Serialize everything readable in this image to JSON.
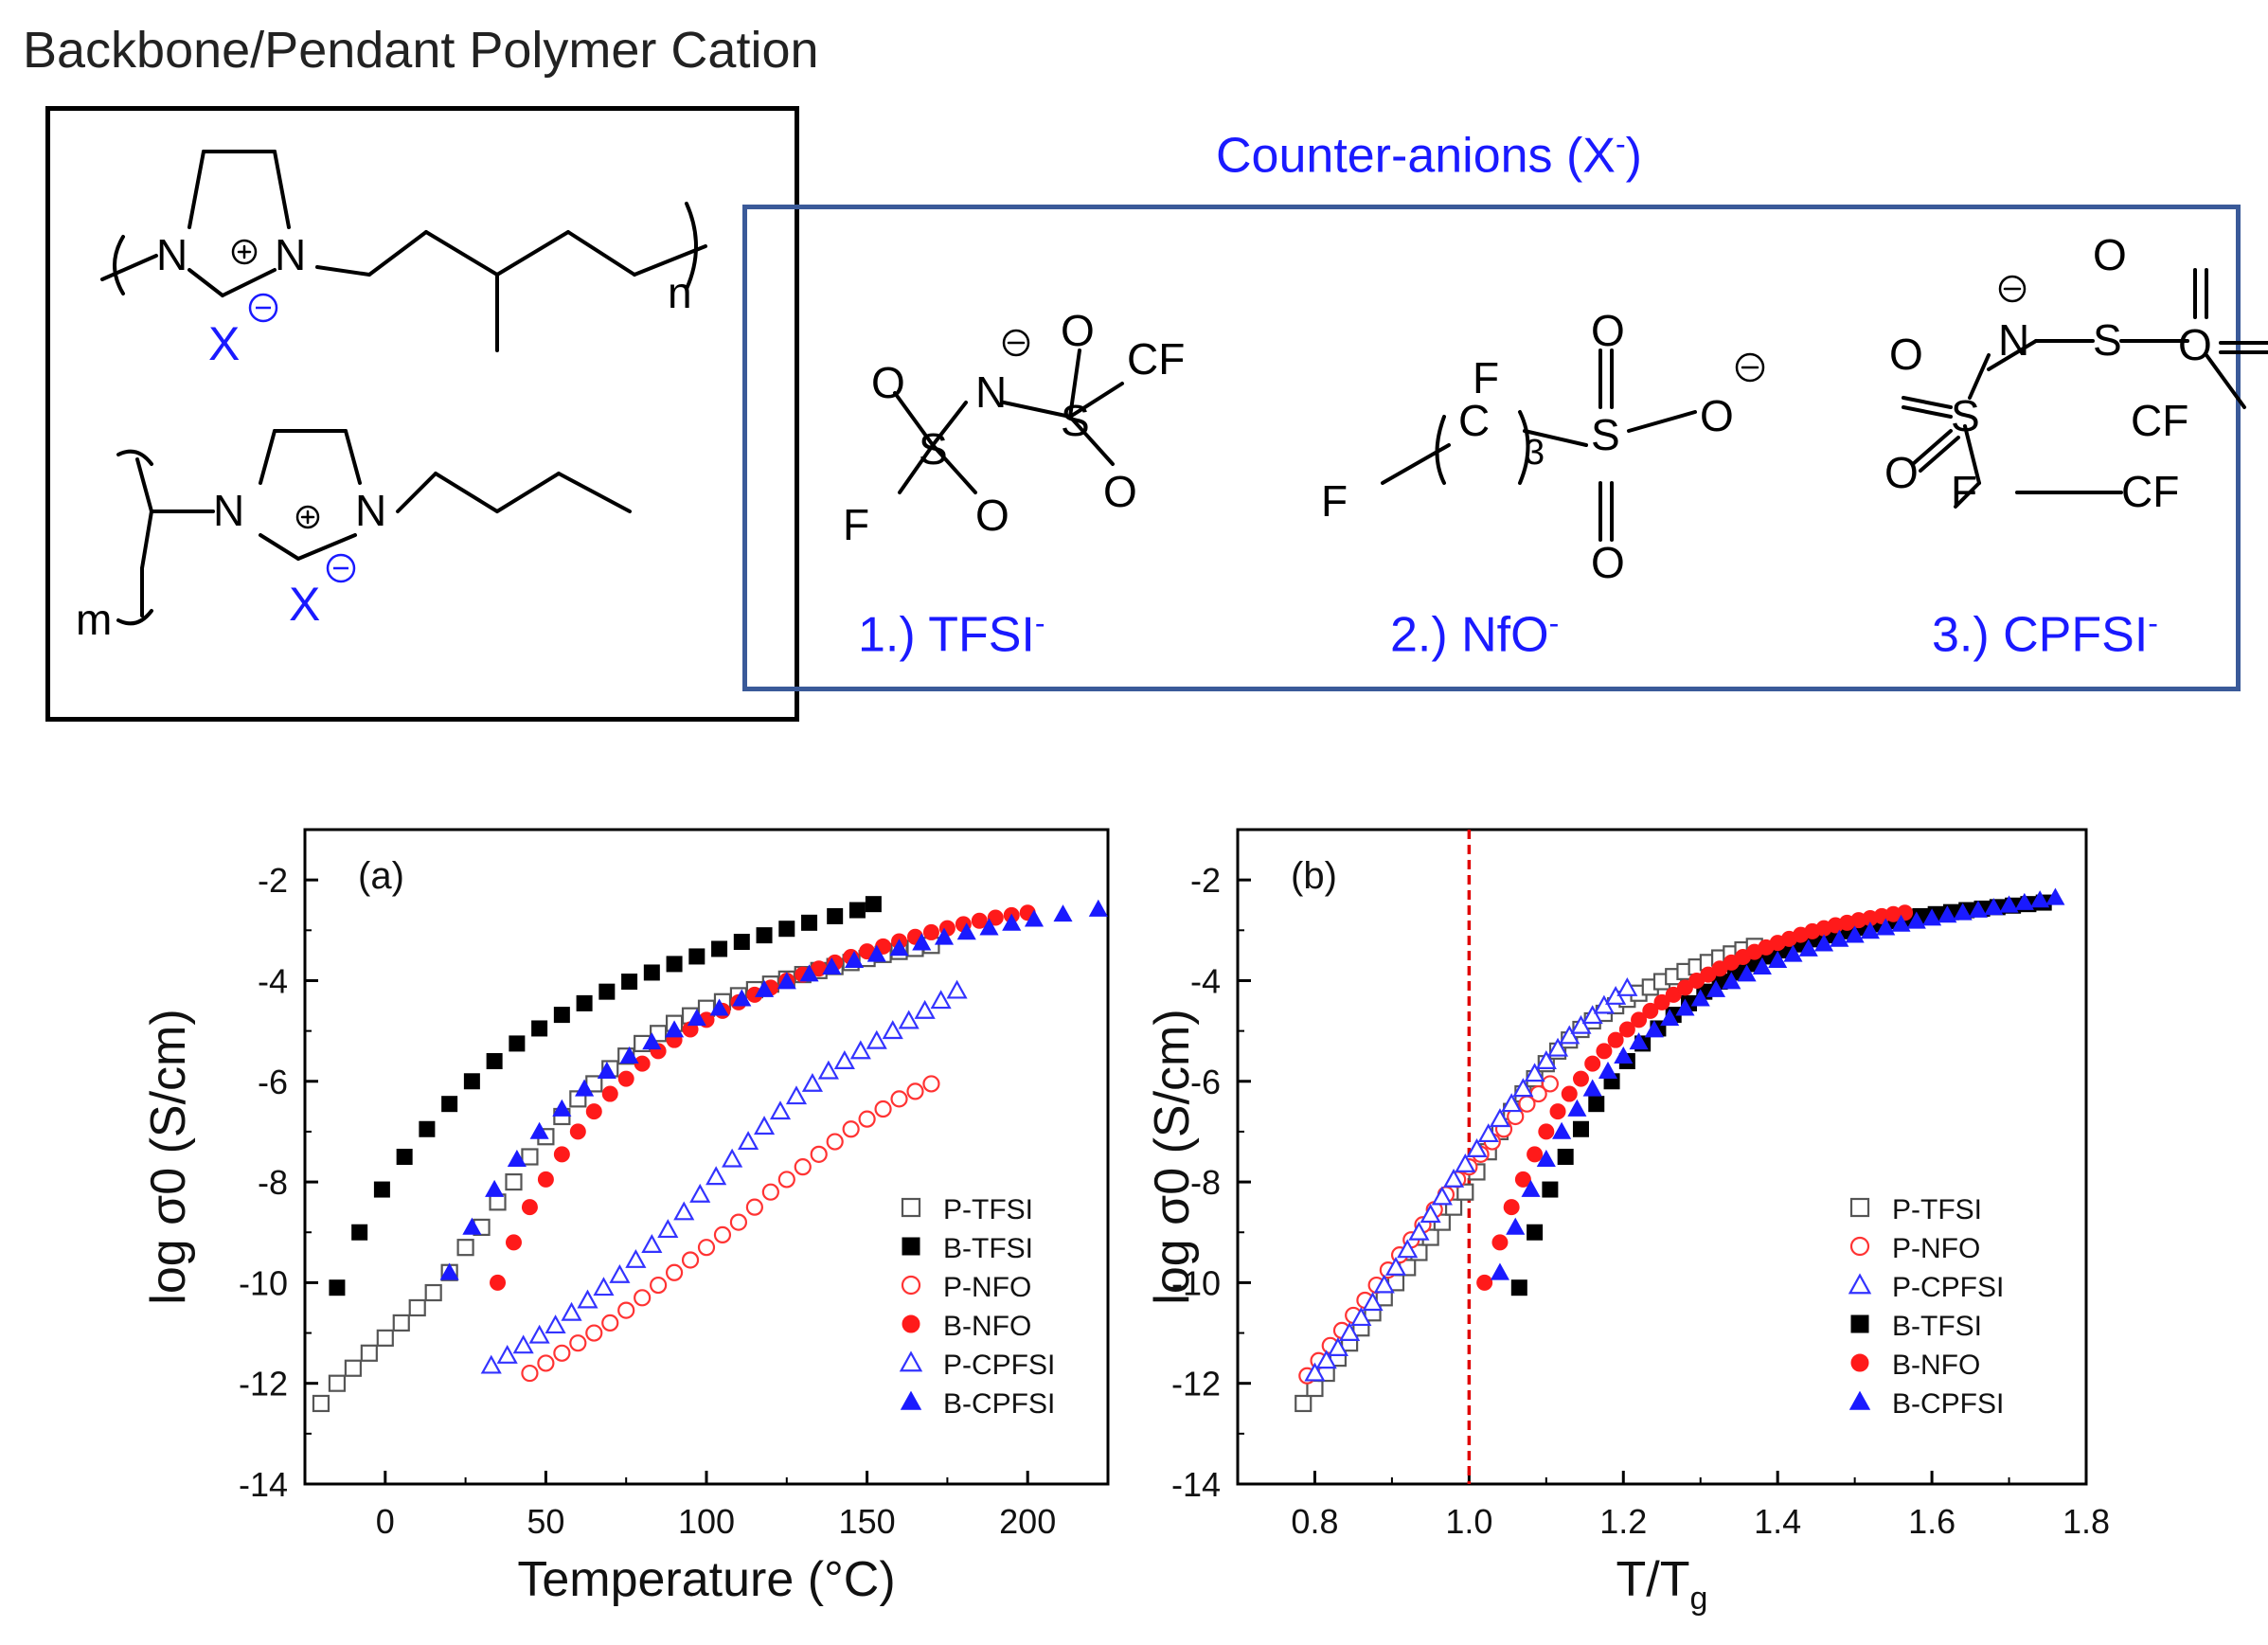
{
  "figure": {
    "title": "Backbone/Pendant Polymer Cation",
    "counter_anion_header": "Counter-anions (X",
    "counter_anion_header_sup": "-",
    "counter_anion_header_close": ")",
    "anions": [
      {
        "label": "1.) TFSI",
        "charge": "-"
      },
      {
        "label": "2.) NfO",
        "charge": "-"
      },
      {
        "label": "3.) CPFSI",
        "charge": "-"
      }
    ],
    "structure_labels": {
      "n": "n",
      "m": "m",
      "X": "X",
      "N": "N",
      "O": "O",
      "S": "S",
      "CF3": "CF",
      "F3C": "F",
      "F2": "F",
      "CF2": "CF",
      "F2C": "F",
      "C": "C",
      "three": "3"
    },
    "colors": {
      "blue_text": "#1a1aff",
      "anion_box": "#3a5a99",
      "red_series": "#ff1a1a",
      "blue_series": "#1a1aff"
    }
  },
  "chart_data": [
    {
      "type": "scatter",
      "panel_label": "(a)",
      "xlabel": "Temperature (°C)",
      "ylabel": "log σ0 (S/cm)",
      "xlim": [
        -25,
        225
      ],
      "ylim": [
        -14,
        -1
      ],
      "xticks": [
        0,
        50,
        100,
        150,
        200
      ],
      "xtick_labels": [
        "0",
        "50",
        "100",
        "150",
        "200"
      ],
      "yticks": [
        -14,
        -12,
        -10,
        -8,
        -6,
        -4,
        -2
      ],
      "ytick_labels": [
        "-14",
        "-12",
        "-10",
        "-8",
        "-6",
        "-4",
        "-2"
      ],
      "legend_position": "bottom-right",
      "series": [
        {
          "name": "P-TFSI",
          "marker": "square",
          "filled": false,
          "color": "#555555",
          "x": [
            -20,
            -15,
            -10,
            -5,
            0,
            5,
            10,
            15,
            20,
            25,
            30,
            35,
            40,
            45,
            50,
            55,
            60,
            65,
            70,
            75,
            80,
            85,
            90,
            95,
            100,
            105,
            110,
            115,
            120,
            125,
            130,
            135,
            140,
            145,
            150,
            155,
            160,
            165,
            170
          ],
          "y": [
            -12.4,
            -12.0,
            -11.7,
            -11.4,
            -11.1,
            -10.8,
            -10.5,
            -10.2,
            -9.8,
            -9.3,
            -8.9,
            -8.4,
            -8.0,
            -7.5,
            -7.1,
            -6.7,
            -6.35,
            -6.05,
            -5.75,
            -5.5,
            -5.25,
            -5.05,
            -4.85,
            -4.7,
            -4.55,
            -4.42,
            -4.3,
            -4.18,
            -4.07,
            -3.97,
            -3.88,
            -3.8,
            -3.72,
            -3.64,
            -3.56,
            -3.48,
            -3.42,
            -3.36,
            -3.3
          ]
        },
        {
          "name": "B-TFSI",
          "marker": "square",
          "filled": true,
          "color": "#000000",
          "x": [
            -15,
            -8,
            -1,
            6,
            13,
            20,
            27,
            34,
            41,
            48,
            55,
            62,
            69,
            76,
            83,
            90,
            97,
            104,
            111,
            118,
            125,
            132,
            140,
            147,
            152
          ],
          "y": [
            -10.1,
            -9.0,
            -8.15,
            -7.5,
            -6.95,
            -6.45,
            -6.0,
            -5.6,
            -5.25,
            -4.95,
            -4.68,
            -4.45,
            -4.22,
            -4.02,
            -3.84,
            -3.67,
            -3.52,
            -3.37,
            -3.23,
            -3.1,
            -2.97,
            -2.85,
            -2.72,
            -2.6,
            -2.48
          ]
        },
        {
          "name": "P-NFO",
          "marker": "circle",
          "filled": false,
          "color": "#ff3333",
          "x": [
            45,
            50,
            55,
            60,
            65,
            70,
            75,
            80,
            85,
            90,
            95,
            100,
            105,
            110,
            115,
            120,
            125,
            130,
            135,
            140,
            145,
            150,
            155,
            160,
            165,
            170
          ],
          "y": [
            -11.8,
            -11.6,
            -11.4,
            -11.2,
            -11.0,
            -10.8,
            -10.55,
            -10.3,
            -10.05,
            -9.8,
            -9.55,
            -9.3,
            -9.05,
            -8.8,
            -8.5,
            -8.2,
            -7.95,
            -7.7,
            -7.45,
            -7.2,
            -6.95,
            -6.75,
            -6.55,
            -6.35,
            -6.2,
            -6.05
          ]
        },
        {
          "name": "B-NFO",
          "marker": "circle",
          "filled": true,
          "color": "#ff1a1a",
          "x": [
            35,
            40,
            45,
            50,
            55,
            60,
            65,
            70,
            75,
            80,
            85,
            90,
            95,
            100,
            105,
            110,
            115,
            120,
            125,
            130,
            135,
            140,
            145,
            150,
            155,
            160,
            165,
            170,
            175,
            180,
            185,
            190,
            195,
            200
          ],
          "y": [
            -10.0,
            -9.2,
            -8.5,
            -7.95,
            -7.45,
            -7.0,
            -6.6,
            -6.25,
            -5.95,
            -5.65,
            -5.4,
            -5.18,
            -4.97,
            -4.78,
            -4.6,
            -4.43,
            -4.28,
            -4.14,
            -4.0,
            -3.88,
            -3.76,
            -3.64,
            -3.53,
            -3.42,
            -3.32,
            -3.22,
            -3.13,
            -3.04,
            -2.96,
            -2.88,
            -2.81,
            -2.75,
            -2.7,
            -2.65
          ]
        },
        {
          "name": "P-CPFSI",
          "marker": "triangle",
          "filled": false,
          "color": "#3333ff",
          "x": [
            33,
            38,
            43,
            48,
            53,
            58,
            63,
            68,
            73,
            78,
            83,
            88,
            93,
            98,
            103,
            108,
            113,
            118,
            123,
            128,
            133,
            138,
            143,
            148,
            153,
            158,
            163,
            168,
            173,
            178
          ],
          "y": [
            -11.65,
            -11.45,
            -11.25,
            -11.05,
            -10.85,
            -10.6,
            -10.35,
            -10.1,
            -9.85,
            -9.55,
            -9.25,
            -8.95,
            -8.6,
            -8.25,
            -7.9,
            -7.55,
            -7.2,
            -6.9,
            -6.6,
            -6.3,
            -6.05,
            -5.8,
            -5.6,
            -5.4,
            -5.2,
            -5.0,
            -4.8,
            -4.6,
            -4.4,
            -4.2
          ]
        },
        {
          "name": "B-CPFSI",
          "marker": "triangle",
          "filled": true,
          "color": "#1a1aff",
          "x": [
            20,
            27,
            34,
            41,
            48,
            55,
            62,
            69,
            76,
            83,
            90,
            97,
            104,
            111,
            118,
            125,
            132,
            139,
            146,
            153,
            160,
            167,
            174,
            181,
            188,
            195,
            202,
            211,
            222
          ],
          "y": [
            -9.8,
            -8.9,
            -8.15,
            -7.55,
            -7.0,
            -6.55,
            -6.15,
            -5.8,
            -5.5,
            -5.22,
            -4.98,
            -4.75,
            -4.55,
            -4.36,
            -4.18,
            -4.02,
            -3.87,
            -3.73,
            -3.6,
            -3.48,
            -3.36,
            -3.25,
            -3.14,
            -3.04,
            -2.95,
            -2.86,
            -2.78,
            -2.68,
            -2.58
          ]
        }
      ]
    },
    {
      "type": "scatter",
      "panel_label": "(b)",
      "xlabel": "T/T",
      "xlabel_sub": "g",
      "ylabel": "log σ0 (S/cm)",
      "xlim": [
        0.7,
        1.8
      ],
      "ylim": [
        -14,
        -1
      ],
      "xticks": [
        0.8,
        1.0,
        1.2,
        1.4,
        1.6,
        1.8
      ],
      "xtick_labels": [
        "0.8",
        "1.0",
        "1.2",
        "1.4",
        "1.6",
        "1.8"
      ],
      "yticks": [
        -14,
        -12,
        -10,
        -8,
        -6,
        -4,
        -2
      ],
      "ytick_labels": [
        "-14",
        "-12",
        "-10",
        "-8",
        "-6",
        "-4",
        "-2"
      ],
      "reference_line": {
        "x": 1.0,
        "style": "dashed",
        "color": "#e00000"
      },
      "legend_position": "bottom-right",
      "series": [
        {
          "name": "P-TFSI",
          "marker": "square",
          "filled": false,
          "color": "#555555",
          "x": [
            0.785,
            0.8,
            0.815,
            0.83,
            0.845,
            0.86,
            0.875,
            0.89,
            0.905,
            0.92,
            0.935,
            0.95,
            0.965,
            0.98,
            0.995,
            1.01,
            1.025,
            1.04,
            1.055,
            1.07,
            1.085,
            1.1,
            1.115,
            1.13,
            1.145,
            1.16,
            1.175,
            1.19,
            1.205,
            1.22,
            1.235,
            1.25,
            1.265,
            1.28,
            1.295,
            1.31,
            1.325,
            1.34,
            1.355,
            1.37
          ],
          "y": [
            -12.4,
            -12.1,
            -11.8,
            -11.5,
            -11.2,
            -10.9,
            -10.6,
            -10.3,
            -10.0,
            -9.7,
            -9.4,
            -9.1,
            -8.8,
            -8.5,
            -8.2,
            -7.8,
            -7.4,
            -7.0,
            -6.6,
            -6.25,
            -5.95,
            -5.65,
            -5.4,
            -5.18,
            -4.97,
            -4.8,
            -4.65,
            -4.5,
            -4.37,
            -4.25,
            -4.13,
            -4.02,
            -3.92,
            -3.82,
            -3.73,
            -3.64,
            -3.55,
            -3.47,
            -3.39,
            -3.32
          ]
        },
        {
          "name": "P-NFO",
          "marker": "circle",
          "filled": false,
          "color": "#ff3333",
          "x": [
            0.79,
            0.805,
            0.82,
            0.835,
            0.85,
            0.865,
            0.88,
            0.895,
            0.91,
            0.925,
            0.94,
            0.955,
            0.97,
            0.985,
            1.0,
            1.015,
            1.03,
            1.045,
            1.06,
            1.075,
            1.09,
            1.105
          ],
          "y": [
            -11.85,
            -11.55,
            -11.25,
            -10.95,
            -10.65,
            -10.35,
            -10.05,
            -9.75,
            -9.45,
            -9.15,
            -8.85,
            -8.55,
            -8.25,
            -7.95,
            -7.7,
            -7.45,
            -7.2,
            -6.95,
            -6.7,
            -6.45,
            -6.25,
            -6.05
          ]
        },
        {
          "name": "P-CPFSI",
          "marker": "triangle",
          "filled": false,
          "color": "#3333ff",
          "x": [
            0.8,
            0.815,
            0.83,
            0.845,
            0.86,
            0.875,
            0.89,
            0.905,
            0.92,
            0.935,
            0.95,
            0.965,
            0.98,
            0.995,
            1.01,
            1.025,
            1.04,
            1.055,
            1.07,
            1.085,
            1.1,
            1.115,
            1.13,
            1.145,
            1.16,
            1.175,
            1.19,
            1.205
          ],
          "y": [
            -11.8,
            -11.55,
            -11.3,
            -11.0,
            -10.7,
            -10.4,
            -10.05,
            -9.7,
            -9.35,
            -9.0,
            -8.65,
            -8.3,
            -7.95,
            -7.65,
            -7.35,
            -7.05,
            -6.75,
            -6.45,
            -6.15,
            -5.85,
            -5.6,
            -5.35,
            -5.1,
            -4.9,
            -4.7,
            -4.5,
            -4.32,
            -4.15
          ]
        },
        {
          "name": "B-TFSI",
          "marker": "square",
          "filled": true,
          "color": "#000000",
          "x": [
            1.065,
            1.085,
            1.105,
            1.125,
            1.145,
            1.165,
            1.185,
            1.205,
            1.225,
            1.245,
            1.265,
            1.285,
            1.305,
            1.325,
            1.345,
            1.365,
            1.385,
            1.405,
            1.425,
            1.445,
            1.465,
            1.485,
            1.505,
            1.525,
            1.545,
            1.565,
            1.585,
            1.605,
            1.625,
            1.645,
            1.665,
            1.685,
            1.705,
            1.725,
            1.745
          ],
          "y": [
            -10.1,
            -9.0,
            -8.15,
            -7.5,
            -6.95,
            -6.45,
            -6.0,
            -5.6,
            -5.25,
            -4.95,
            -4.68,
            -4.45,
            -4.22,
            -4.02,
            -3.84,
            -3.67,
            -3.52,
            -3.4,
            -3.28,
            -3.18,
            -3.1,
            -3.02,
            -2.95,
            -2.88,
            -2.82,
            -2.77,
            -2.72,
            -2.68,
            -2.64,
            -2.6,
            -2.57,
            -2.54,
            -2.51,
            -2.48,
            -2.45
          ]
        },
        {
          "name": "B-NFO",
          "marker": "circle",
          "filled": true,
          "color": "#ff1a1a",
          "x": [
            1.02,
            1.04,
            1.055,
            1.07,
            1.085,
            1.1,
            1.115,
            1.13,
            1.145,
            1.16,
            1.175,
            1.19,
            1.205,
            1.22,
            1.235,
            1.25,
            1.265,
            1.28,
            1.295,
            1.31,
            1.325,
            1.34,
            1.355,
            1.37,
            1.385,
            1.4,
            1.415,
            1.43,
            1.445,
            1.46,
            1.475,
            1.49,
            1.505,
            1.52,
            1.535,
            1.55,
            1.565
          ],
          "y": [
            -10.0,
            -9.2,
            -8.5,
            -7.95,
            -7.45,
            -7.0,
            -6.6,
            -6.25,
            -5.95,
            -5.65,
            -5.4,
            -5.18,
            -4.97,
            -4.78,
            -4.6,
            -4.43,
            -4.28,
            -4.14,
            -4.0,
            -3.88,
            -3.76,
            -3.64,
            -3.53,
            -3.43,
            -3.34,
            -3.25,
            -3.17,
            -3.09,
            -3.02,
            -2.96,
            -2.9,
            -2.85,
            -2.8,
            -2.76,
            -2.72,
            -2.68,
            -2.65
          ]
        },
        {
          "name": "B-CPFSI",
          "marker": "triangle",
          "filled": true,
          "color": "#1a1aff",
          "x": [
            1.04,
            1.06,
            1.08,
            1.1,
            1.12,
            1.14,
            1.16,
            1.18,
            1.2,
            1.22,
            1.24,
            1.26,
            1.28,
            1.3,
            1.32,
            1.34,
            1.36,
            1.38,
            1.4,
            1.42,
            1.44,
            1.46,
            1.48,
            1.5,
            1.52,
            1.54,
            1.56,
            1.58,
            1.6,
            1.62,
            1.64,
            1.66,
            1.68,
            1.7,
            1.72,
            1.74,
            1.76
          ],
          "y": [
            -9.8,
            -8.9,
            -8.15,
            -7.55,
            -7.0,
            -6.55,
            -6.15,
            -5.8,
            -5.5,
            -5.22,
            -4.98,
            -4.75,
            -4.55,
            -4.36,
            -4.18,
            -4.02,
            -3.87,
            -3.73,
            -3.6,
            -3.48,
            -3.37,
            -3.27,
            -3.18,
            -3.1,
            -3.02,
            -2.95,
            -2.88,
            -2.82,
            -2.76,
            -2.7,
            -2.65,
            -2.6,
            -2.55,
            -2.5,
            -2.45,
            -2.4,
            -2.35
          ]
        }
      ],
      "legend_order": [
        "P-TFSI",
        "P-NFO",
        "P-CPFSI",
        "B-TFSI",
        "B-NFO",
        "B-CPFSI"
      ]
    }
  ]
}
